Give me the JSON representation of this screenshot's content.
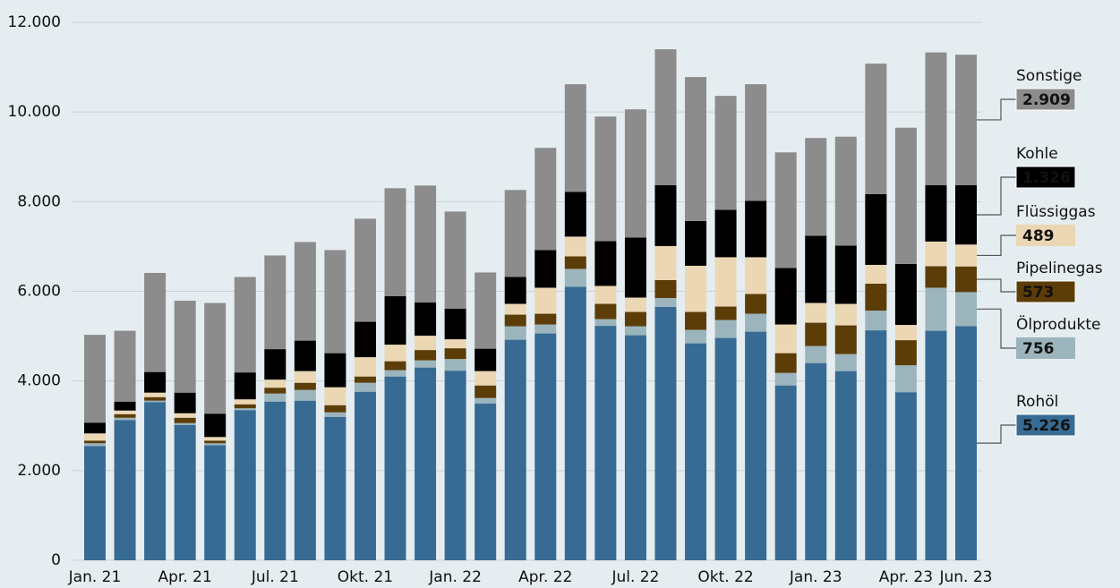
{
  "chart_data": {
    "type": "stacked_bar",
    "categories": [
      "Jan. 21",
      null,
      null,
      "Apr. 21",
      null,
      null,
      "Jul. 21",
      null,
      null,
      "Okt. 21",
      null,
      null,
      "Jan. 22",
      null,
      null,
      "Apr. 22",
      null,
      null,
      "Jul. 22",
      null,
      null,
      "Okt. 22",
      null,
      null,
      "Jan. 23",
      null,
      null,
      "Apr. 23",
      null,
      "Jun. 23"
    ],
    "series": [
      {
        "name": "Rohöl",
        "color": "#386b93",
        "values": [
          2550,
          3130,
          3530,
          3020,
          2570,
          3350,
          3540,
          3560,
          3200,
          3760,
          4100,
          4300,
          4230,
          3500,
          4920,
          5060,
          6100,
          5230,
          5020,
          5650,
          4840,
          4960,
          5100,
          3900,
          4400,
          4220,
          5130,
          3750,
          5120,
          5226
        ],
        "value_labels": [
          null,
          null,
          null,
          null,
          null,
          null,
          null,
          null,
          null,
          null,
          null,
          null,
          null,
          null,
          null,
          null,
          null,
          null,
          null,
          null,
          null,
          null,
          null,
          null,
          null,
          null,
          null,
          null,
          null,
          "5.226"
        ]
      },
      {
        "name": "Ölprodukte",
        "color": "#9cb5bd",
        "values": [
          60,
          50,
          30,
          40,
          40,
          40,
          180,
          240,
          100,
          200,
          140,
          160,
          260,
          120,
          300,
          200,
          400,
          150,
          200,
          200,
          300,
          400,
          400,
          280,
          380,
          380,
          440,
          600,
          960,
          756
        ],
        "value_labels": [
          null,
          null,
          null,
          null,
          null,
          null,
          null,
          null,
          null,
          null,
          null,
          null,
          null,
          null,
          null,
          null,
          null,
          null,
          null,
          null,
          null,
          null,
          null,
          null,
          null,
          null,
          null,
          null,
          null,
          "756"
        ]
      },
      {
        "name": "Pipelinegas",
        "color": "#5c3d08",
        "values": [
          60,
          80,
          80,
          120,
          60,
          90,
          130,
          160,
          160,
          140,
          200,
          230,
          240,
          280,
          260,
          240,
          280,
          340,
          320,
          400,
          400,
          300,
          440,
          440,
          520,
          640,
          600,
          560,
          480,
          573
        ],
        "value_labels": [
          null,
          null,
          null,
          null,
          null,
          null,
          null,
          null,
          null,
          null,
          null,
          null,
          null,
          null,
          null,
          null,
          null,
          null,
          null,
          null,
          null,
          null,
          null,
          null,
          null,
          null,
          null,
          null,
          null,
          "573"
        ]
      },
      {
        "name": "Flüssiggas",
        "color": "#ecd7b4",
        "values": [
          160,
          80,
          100,
          100,
          80,
          110,
          180,
          260,
          400,
          430,
          370,
          320,
          200,
          320,
          240,
          580,
          440,
          400,
          320,
          760,
          1030,
          1100,
          820,
          640,
          440,
          480,
          420,
          340,
          550,
          489
        ],
        "value_labels": [
          null,
          null,
          null,
          null,
          null,
          null,
          null,
          null,
          null,
          null,
          null,
          null,
          null,
          null,
          null,
          null,
          null,
          null,
          null,
          null,
          null,
          null,
          null,
          null,
          null,
          null,
          null,
          null,
          null,
          "489"
        ]
      },
      {
        "name": "Kohle",
        "color": "#000000",
        "values": [
          240,
          200,
          460,
          460,
          520,
          600,
          680,
          680,
          760,
          790,
          1080,
          740,
          680,
          500,
          600,
          840,
          1000,
          1000,
          1340,
          1360,
          1000,
          1060,
          1260,
          1260,
          1500,
          1300,
          1580,
          1360,
          1260,
          1326
        ],
        "value_labels": [
          null,
          null,
          null,
          null,
          null,
          null,
          null,
          null,
          null,
          null,
          null,
          null,
          null,
          null,
          null,
          null,
          null,
          null,
          null,
          null,
          null,
          null,
          null,
          null,
          null,
          null,
          null,
          null,
          null,
          "1.326"
        ]
      },
      {
        "name": "Sonstige",
        "color": "#8c8c8c",
        "values": [
          1960,
          1580,
          2210,
          2050,
          2470,
          2130,
          2090,
          2200,
          2300,
          2300,
          2410,
          2610,
          2170,
          1700,
          1940,
          2280,
          2400,
          2780,
          2860,
          3030,
          3210,
          2540,
          2600,
          2580,
          2180,
          2430,
          2910,
          3040,
          2960,
          2909
        ],
        "value_labels": [
          null,
          null,
          null,
          null,
          null,
          null,
          null,
          null,
          null,
          null,
          null,
          null,
          null,
          null,
          null,
          null,
          null,
          null,
          null,
          null,
          null,
          null,
          null,
          null,
          null,
          null,
          null,
          null,
          null,
          "2.909"
        ]
      }
    ],
    "ylim": [
      0,
      12000
    ],
    "yticks": [
      0,
      {
        "value": 2000,
        "label": "2.000"
      },
      {
        "value": 4000,
        "label": "4.000"
      },
      {
        "value": 6000,
        "label": "6.000"
      },
      {
        "value": 8000,
        "label": "8.000"
      },
      {
        "value": 10000,
        "label": "10.000"
      },
      {
        "value": 12000,
        "label": "12.000"
      }
    ],
    "grid": true
  }
}
